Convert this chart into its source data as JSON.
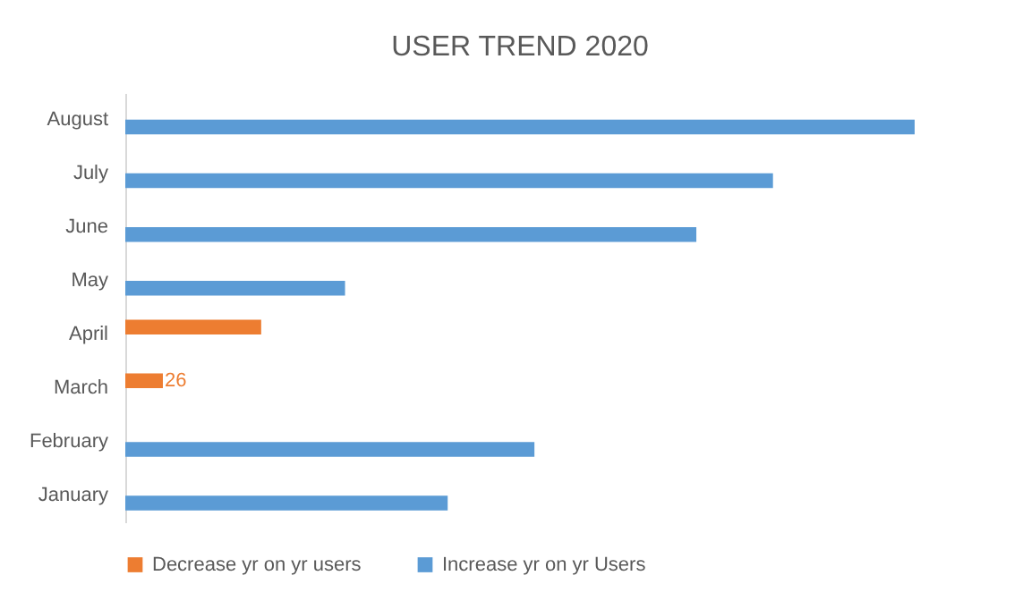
{
  "chart_data": {
    "type": "bar",
    "title": "USER TREND 2020",
    "orientation": "horizontal",
    "legend": "bottom",
    "categories": [
      "August",
      "July",
      "June",
      "May",
      "April",
      "March",
      "February",
      "January"
    ],
    "series": [
      {
        "name": "Decrease yr on yr users",
        "color": "#ed7d31",
        "values": [
          null,
          null,
          null,
          null,
          94,
          26,
          null,
          null
        ],
        "value_labels": [
          null,
          null,
          null,
          null,
          null,
          "26",
          null,
          null
        ]
      },
      {
        "name": "Increase yr on yr Users",
        "color": "#5b9bd5",
        "values": [
          546,
          448,
          395,
          152,
          null,
          null,
          283,
          223
        ]
      }
    ]
  }
}
